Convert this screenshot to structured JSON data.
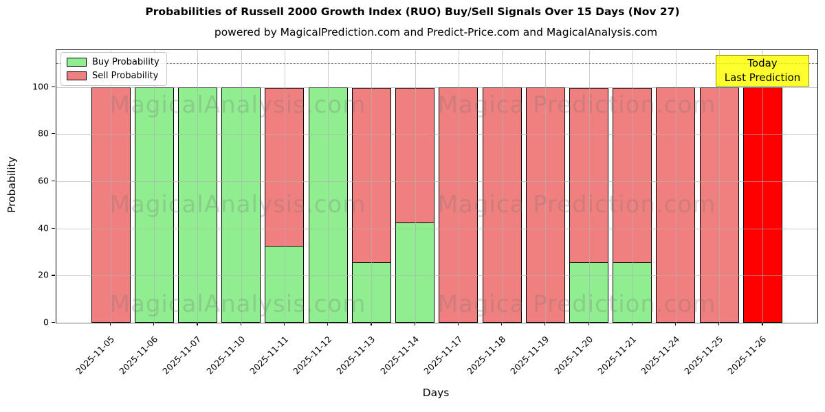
{
  "header": {
    "title": "Probabilities of Russell 2000 Growth Index (RUO) Buy/Sell Signals Over 15 Days (Nov 27)",
    "subtitle": "powered by MagicalPrediction.com and Predict-Price.com and MagicalAnalysis.com"
  },
  "annotation": {
    "line1": "Today",
    "line2": "Last Prediction",
    "background": "#ffff00"
  },
  "watermarks": {
    "texts": [
      "MagicalAnalysis.com",
      "Magica Prediction.com"
    ],
    "row_centers_y": [
      152,
      297,
      442
    ],
    "col_centers_x": [
      345,
      838
    ]
  },
  "colors": {
    "buy": "#90EE90",
    "sell": "#F08080",
    "today_bar": "#FF0000",
    "bar_edge": "#000000",
    "grid": "#b0b0b0",
    "dashed_line": "#7f7f7f"
  },
  "chart_data": {
    "type": "bar",
    "stacked": true,
    "title": "Probabilities of Russell 2000 Growth Index (RUO) Buy/Sell Signals Over 15 Days (Nov 27)",
    "subtitle": "powered by MagicalPrediction.com and Predict-Price.com and MagicalAnalysis.com",
    "xlabel": "Days",
    "ylabel": "Probability",
    "categories": [
      "2025-11-05",
      "2025-11-06",
      "2025-11-07",
      "2025-11-10",
      "2025-11-11",
      "2025-11-12",
      "2025-11-13",
      "2025-11-14",
      "2025-11-17",
      "2025-11-18",
      "2025-11-19",
      "2025-11-20",
      "2025-11-21",
      "2025-11-24",
      "2025-11-25",
      "2025-11-26"
    ],
    "series": [
      {
        "name": "Buy Probability",
        "color": "#90EE90",
        "values": [
          0,
          100,
          100,
          100,
          32.5,
          100,
          25.5,
          42.5,
          0,
          0,
          0,
          25.5,
          25.5,
          0,
          0,
          0
        ]
      },
      {
        "name": "Sell Probability",
        "color": "#F08080",
        "values": [
          100,
          0,
          0,
          0,
          67.5,
          0,
          74.5,
          57.5,
          100,
          100,
          100,
          74.5,
          74.5,
          100,
          100,
          100
        ]
      }
    ],
    "today_bar": {
      "category": "2025-11-26",
      "index": 15,
      "color": "#FF0000",
      "value": 100
    },
    "yticks": [
      0,
      20,
      40,
      60,
      80,
      100
    ],
    "ylim": [
      0,
      115.6
    ],
    "dashed_line_y": 110,
    "grid": true,
    "legend_position": "upper left",
    "legend": [
      "Buy Probability",
      "Sell Probability"
    ]
  }
}
